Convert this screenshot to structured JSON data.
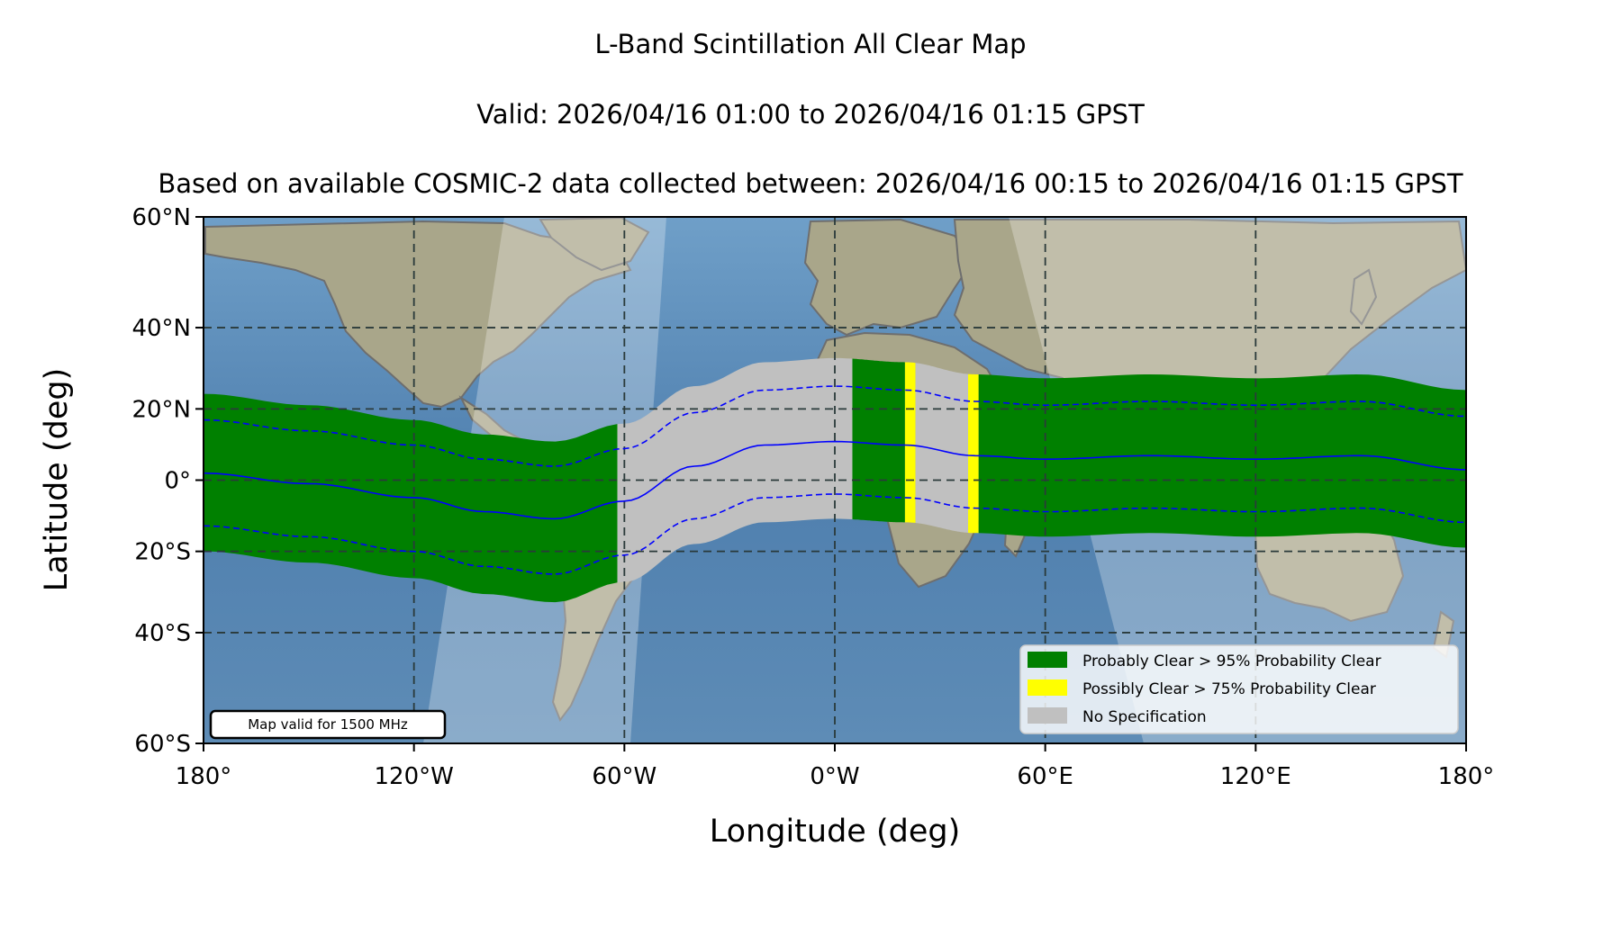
{
  "titles": {
    "line1": "L-Band Scintillation All Clear Map",
    "line2": "Valid: 2026/04/16 01:00 to 2026/04/16 01:15 GPST",
    "line3": "Based on available COSMIC-2 data collected between: 2026/04/16 00:15 to 2026/04/16 01:15 GPST"
  },
  "axes": {
    "xlabel": "Longitude (deg)",
    "ylabel": "Latitude (deg)",
    "x_range": [
      -180,
      180
    ],
    "y_range": [
      -60,
      60
    ],
    "x_ticks": [
      {
        "value": -180,
        "label": "180°"
      },
      {
        "value": -120,
        "label": "120°W"
      },
      {
        "value": -60,
        "label": "60°W"
      },
      {
        "value": 0,
        "label": "0°W"
      },
      {
        "value": 60,
        "label": "60°E"
      },
      {
        "value": 120,
        "label": "120°E"
      },
      {
        "value": 180,
        "label": "180°"
      }
    ],
    "y_ticks": [
      {
        "value": 60,
        "label": "60°N"
      },
      {
        "value": 40,
        "label": "40°N"
      },
      {
        "value": 20,
        "label": "20°N"
      },
      {
        "value": 0,
        "label": "0°"
      },
      {
        "value": -20,
        "label": "20°S"
      },
      {
        "value": -40,
        "label": "40°S"
      },
      {
        "value": -60,
        "label": "60°S"
      }
    ],
    "grid": true,
    "projection": "mercator"
  },
  "legend": {
    "position": "lower-right",
    "entries": [
      {
        "label": "Probably Clear > 95% Probability Clear",
        "color": "#008000"
      },
      {
        "label": "Possibly Clear > 75% Probability Clear",
        "color": "#ffff00"
      },
      {
        "label": "No Specification",
        "color": "#c0c0c0"
      }
    ]
  },
  "note": {
    "text": "Map valid for 1500 MHz",
    "position": "lower-left"
  },
  "colors": {
    "ocean": "#5f8fb8",
    "land": "#a9a68a",
    "probably_clear": "#008000",
    "possibly_clear": "#ffff00",
    "no_spec": "#c0c0c0",
    "equator_line": "#0000ff",
    "grid": "#2a3a3a"
  },
  "chart_data": {
    "type": "map",
    "magnetic_equator": [
      {
        "lon": -180,
        "lat": 2
      },
      {
        "lon": -150,
        "lat": -1
      },
      {
        "lon": -120,
        "lat": -5
      },
      {
        "lon": -100,
        "lat": -9
      },
      {
        "lon": -80,
        "lat": -11
      },
      {
        "lon": -60,
        "lat": -6
      },
      {
        "lon": -40,
        "lat": 4
      },
      {
        "lon": -20,
        "lat": 10
      },
      {
        "lon": 0,
        "lat": 11
      },
      {
        "lon": 20,
        "lat": 10
      },
      {
        "lon": 40,
        "lat": 7
      },
      {
        "lon": 60,
        "lat": 6
      },
      {
        "lon": 90,
        "lat": 7
      },
      {
        "lon": 120,
        "lat": 6
      },
      {
        "lon": 150,
        "lat": 7
      },
      {
        "lon": 180,
        "lat": 3
      }
    ],
    "band_half_width_deg": 22,
    "dashed_offset_deg": 15,
    "segments": [
      {
        "lon_start": -180,
        "lon_end": -62,
        "category": "probably_clear"
      },
      {
        "lon_start": -62,
        "lon_end": 5,
        "category": "no_spec"
      },
      {
        "lon_start": 5,
        "lon_end": 20,
        "category": "probably_clear"
      },
      {
        "lon_start": 20,
        "lon_end": 23,
        "category": "possibly_clear"
      },
      {
        "lon_start": 23,
        "lon_end": 38,
        "category": "no_spec"
      },
      {
        "lon_start": 38,
        "lon_end": 41,
        "category": "possibly_clear"
      },
      {
        "lon_start": 41,
        "lon_end": 180,
        "category": "probably_clear"
      }
    ]
  }
}
